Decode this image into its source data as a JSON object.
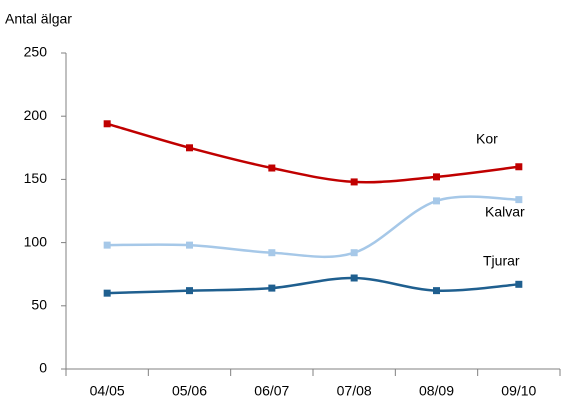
{
  "chart_data": {
    "type": "line",
    "y_label": "Antal älgar",
    "categories": [
      "04/05",
      "05/06",
      "06/07",
      "07/08",
      "08/09",
      "09/10"
    ],
    "series": [
      {
        "name": "Kor",
        "color": "#c00000",
        "values": [
          194,
          175,
          159,
          148,
          152,
          160
        ]
      },
      {
        "name": "Kalvar",
        "color": "#a6c8e8",
        "values": [
          98,
          98,
          92,
          92,
          133,
          134
        ]
      },
      {
        "name": "Tjurar",
        "color": "#1f5f8f",
        "values": [
          60,
          62,
          64,
          72,
          62,
          67
        ]
      }
    ],
    "ylim": [
      0,
      250
    ],
    "yticks": [
      0,
      50,
      100,
      150,
      200,
      250
    ],
    "grid": false,
    "smooth": true
  }
}
